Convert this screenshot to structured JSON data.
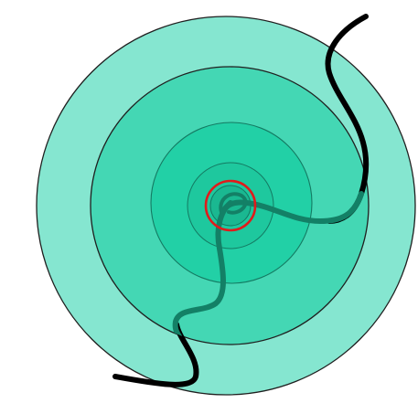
{
  "colors": {
    "background": "#ffffff",
    "ring_outer": "#85e6d0",
    "ring_second": "#44d7b4",
    "ring_third": "#22d0a6",
    "ring_inner": "#1ec89e",
    "ring_core": "#1ab891",
    "ring_stroke": "#1f1f1f",
    "ring_stroke_inner": "#147a62",
    "target_circle": "#e11b1b",
    "path_outer": "#000000",
    "path_inner": "#138066"
  },
  "scene": {
    "ring_count": 5,
    "path_count": 3,
    "marker": "red-target-circle"
  }
}
